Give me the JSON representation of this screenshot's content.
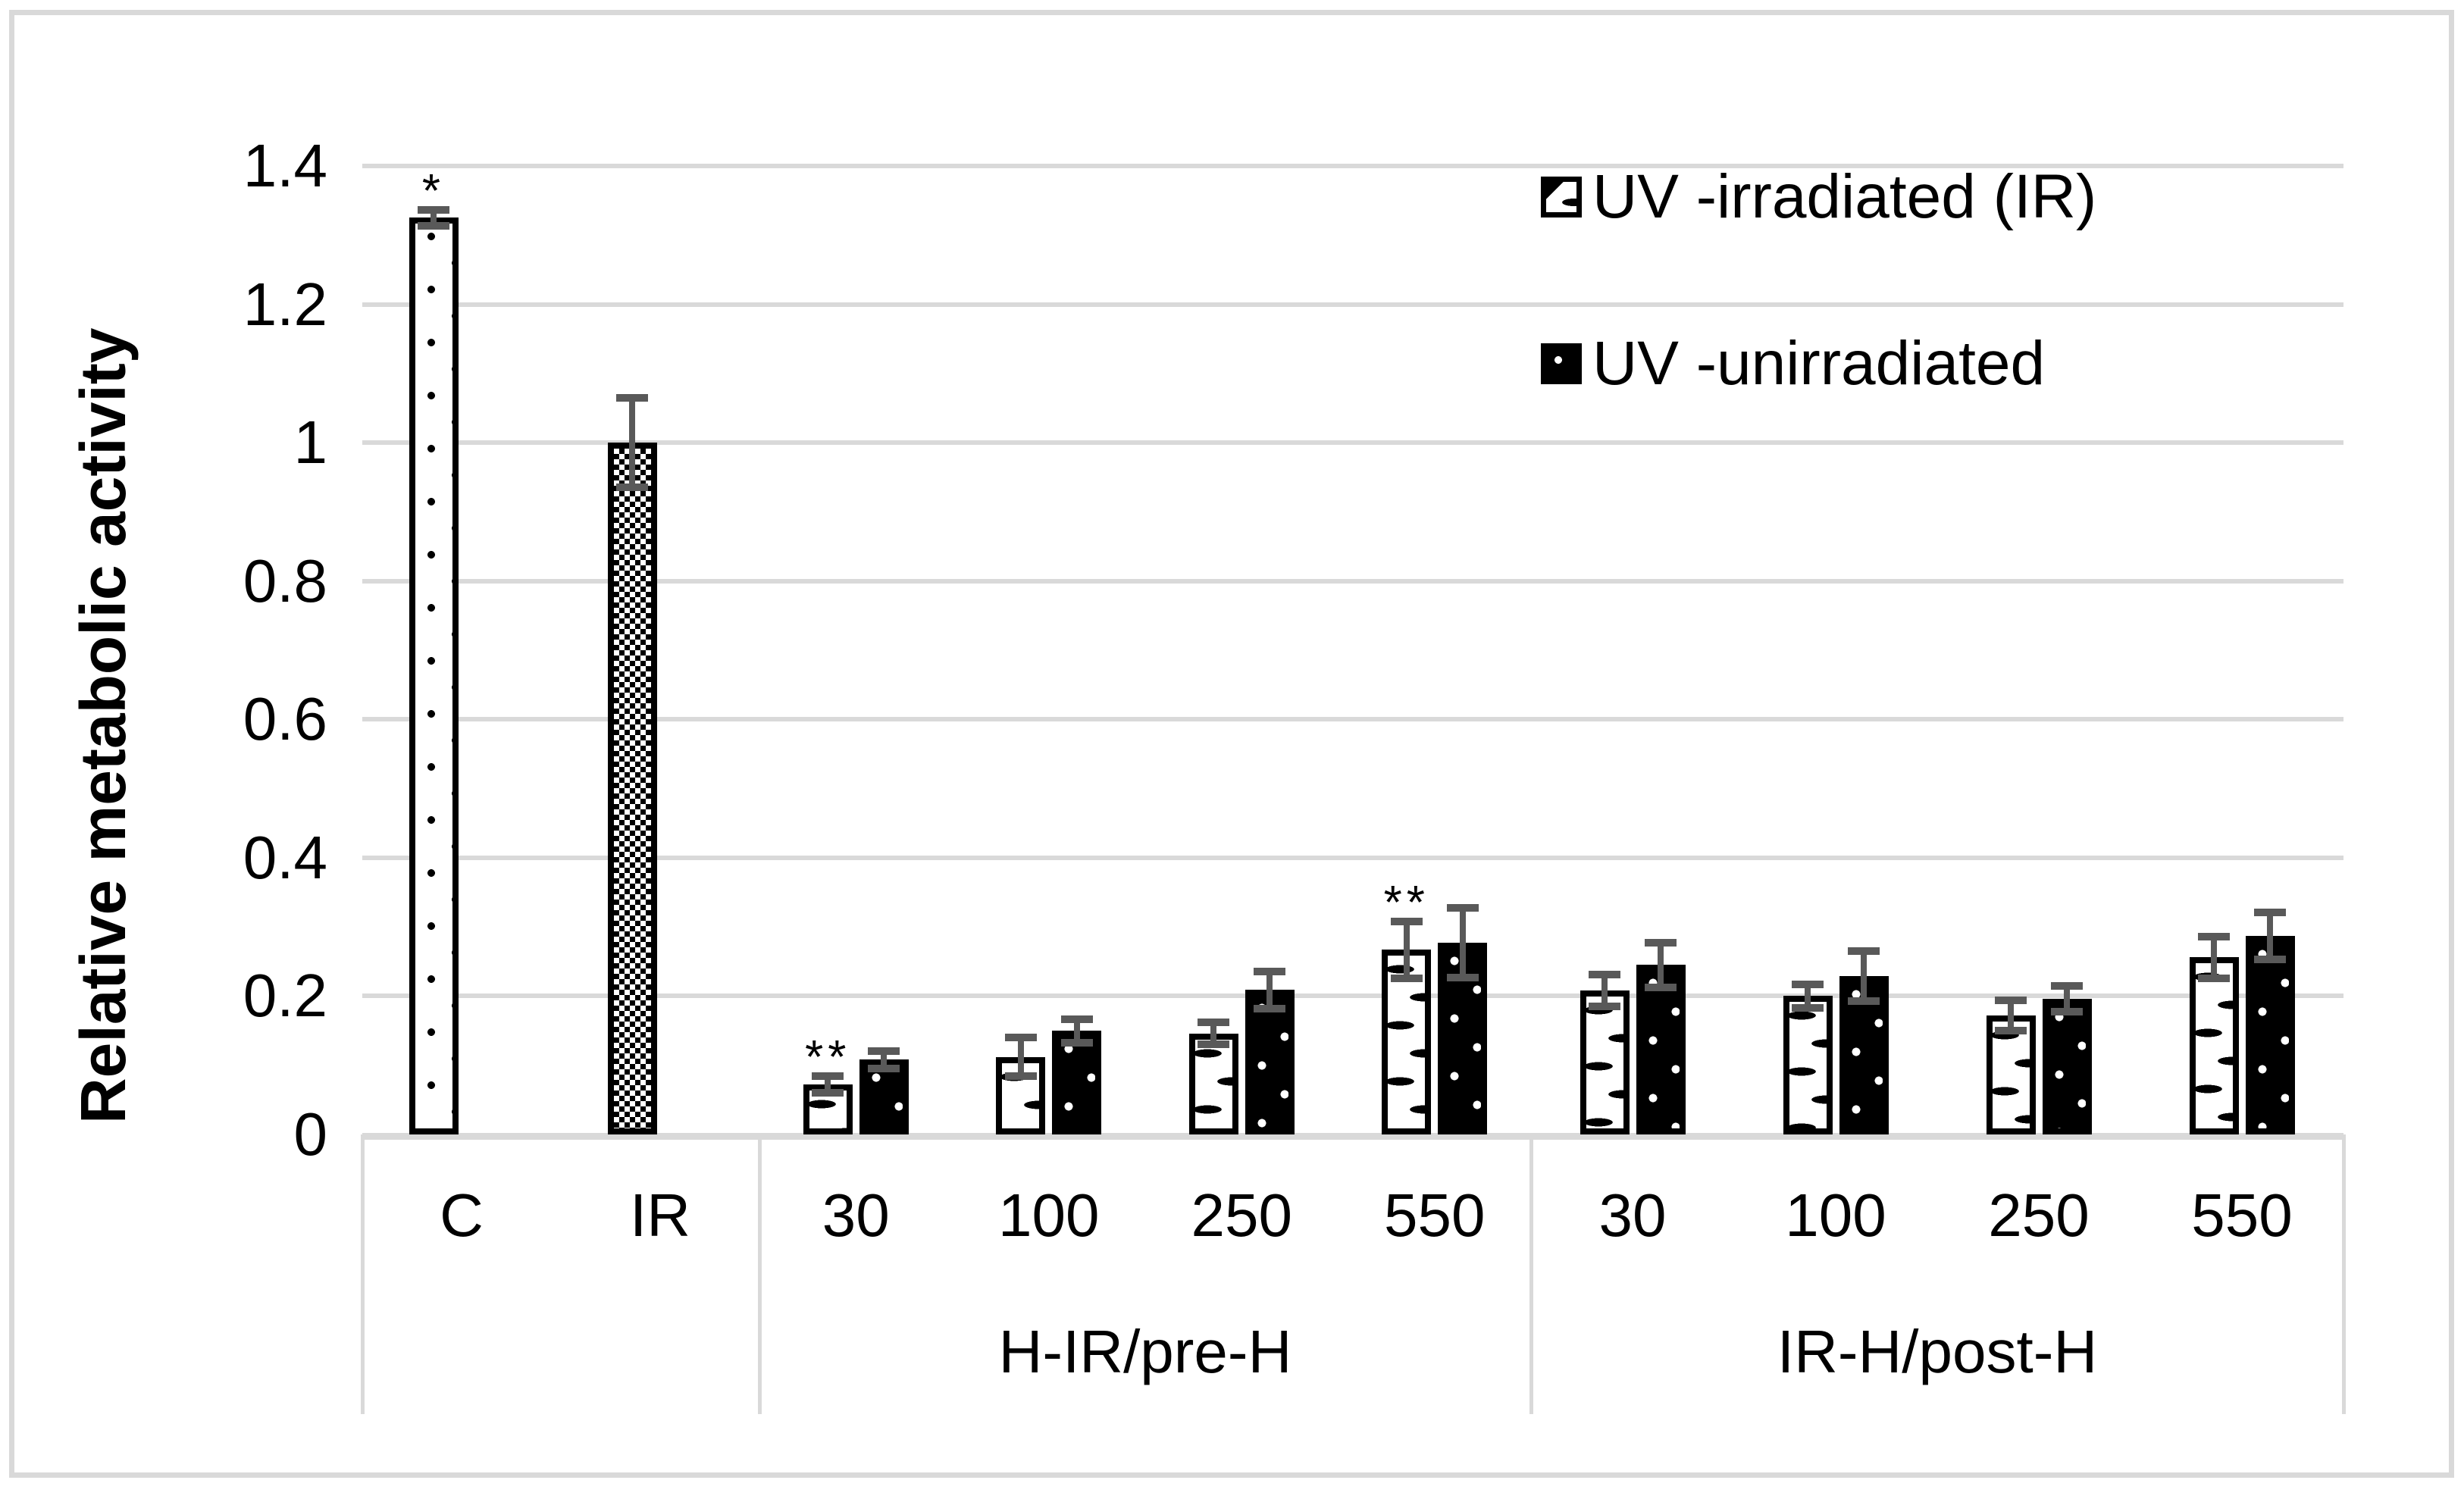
{
  "colors": {
    "bar_fill_dark": "#000000",
    "bar_fill_light": "#ffffff",
    "bar_outline": "#000000",
    "error_bar": "#595959",
    "gridline": "#d9d9d9",
    "text": "#000000",
    "figure_border": "#d9d9d9"
  },
  "chart_data": {
    "type": "bar",
    "title": "",
    "xlabel": "",
    "ylabel": "Relative metabolic activity",
    "ylim": [
      0,
      1.4
    ],
    "yticks": [
      {
        "value": 0,
        "label": "0"
      },
      {
        "value": 0.2,
        "label": "0.2"
      },
      {
        "value": 0.4,
        "label": "0.4"
      },
      {
        "value": 0.6,
        "label": "0.6"
      },
      {
        "value": 0.8,
        "label": "0.8"
      },
      {
        "value": 1,
        "label": "1"
      },
      {
        "value": 1.2,
        "label": "1.2"
      },
      {
        "value": 1.4,
        "label": "1.4"
      }
    ],
    "grid": true,
    "legend_position": "top-right",
    "legend": [
      {
        "label": "UV -irradiated (IR)",
        "pattern": "dash-white"
      },
      {
        "label": "UV -unirradiated",
        "pattern": "dot-black"
      }
    ],
    "groups": [
      {
        "label": "",
        "bars": [
          {
            "category": "C",
            "pattern": "dot-white",
            "value": 1.325,
            "error": 0.012,
            "annotation": "*"
          },
          {
            "category": "IR",
            "pattern": "checker",
            "value": 1.0,
            "error": 0.065,
            "annotation": ""
          }
        ]
      },
      {
        "label": "H-IR/pre-H",
        "bars": [
          {
            "category": "30",
            "irradiated": 0.072,
            "irradiated_error": 0.012,
            "unirradiated": 0.108,
            "unirradiated_error": 0.013,
            "annotation": "**"
          },
          {
            "category": "100",
            "irradiated": 0.112,
            "irradiated_error": 0.028,
            "unirradiated": 0.15,
            "unirradiated_error": 0.017,
            "annotation": ""
          },
          {
            "category": "250",
            "irradiated": 0.146,
            "irradiated_error": 0.016,
            "unirradiated": 0.209,
            "unirradiated_error": 0.027,
            "annotation": ""
          },
          {
            "category": "550",
            "irradiated": 0.267,
            "irradiated_error": 0.041,
            "unirradiated": 0.277,
            "unirradiated_error": 0.05,
            "annotation": "**"
          }
        ]
      },
      {
        "label": "IR-H/post-H",
        "bars": [
          {
            "category": "30",
            "irradiated": 0.208,
            "irradiated_error": 0.023,
            "unirradiated": 0.245,
            "unirradiated_error": 0.032,
            "annotation": ""
          },
          {
            "category": "100",
            "irradiated": 0.2,
            "irradiated_error": 0.017,
            "unirradiated": 0.229,
            "unirradiated_error": 0.036,
            "annotation": ""
          },
          {
            "category": "250",
            "irradiated": 0.172,
            "irradiated_error": 0.022,
            "unirradiated": 0.196,
            "unirradiated_error": 0.019,
            "annotation": ""
          },
          {
            "category": "550",
            "irradiated": 0.256,
            "irradiated_error": 0.03,
            "unirradiated": 0.287,
            "unirradiated_error": 0.034,
            "annotation": ""
          }
        ]
      }
    ]
  }
}
